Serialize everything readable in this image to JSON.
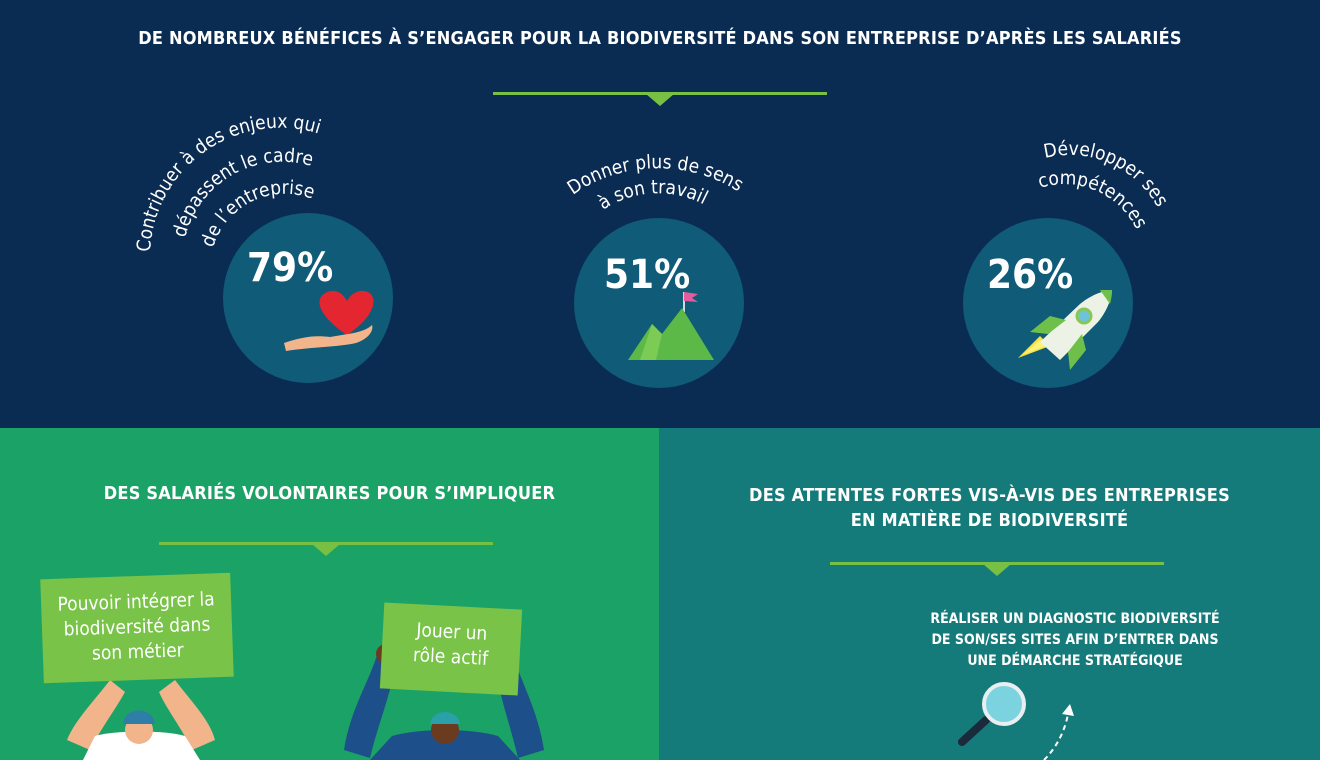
{
  "header": {
    "title": "DE NOMBREUX BÉNÉFICES À S’ENGAGER POUR LA BIODIVERSITÉ DANS SON ENTREPRISE D’APRÈS LES SALARIÉS"
  },
  "benefits": [
    {
      "lines": [
        "Contribuer à des enjeux qui",
        "dépassent le cadre",
        "de l’entreprise"
      ],
      "percent": "79%",
      "icon": "heart-in-hand-icon"
    },
    {
      "lines": [
        "Donner plus de sens",
        "à son travail"
      ],
      "percent": "51%",
      "icon": "mountain-flag-icon"
    },
    {
      "lines": [
        "Développer ses",
        "compétences"
      ],
      "percent": "26%",
      "icon": "rocket-icon"
    }
  ],
  "volunteers": {
    "title": "DES SALARIÉS VOLONTAIRES POUR S’IMPLIQUER",
    "sign1": [
      "Pouvoir intégrer la",
      "biodiversité dans",
      "son métier"
    ],
    "sign2": [
      "Jouer un",
      "rôle actif"
    ]
  },
  "expectations": {
    "title_lines": [
      "DES ATTENTES FORTES VIS-À-VIS DES ENTREPRISES",
      "EN MATIÈRE DE BIODIVERSITÉ"
    ],
    "item1": [
      "RÉALISER UN DIAGNOSTIC BIODIVERSITÉ",
      "DE SON/SES SITES AFIN D’ENTRER DANS",
      "UNE DÉMARCHE STRATÉGIQUE"
    ],
    "icon": "magnifier-icon"
  },
  "colors": {
    "navy": "#0b2c52",
    "circle": "#0f5b78",
    "green_panel": "#1ba266",
    "teal_panel": "#147b7a",
    "accent_green": "#77c043"
  }
}
